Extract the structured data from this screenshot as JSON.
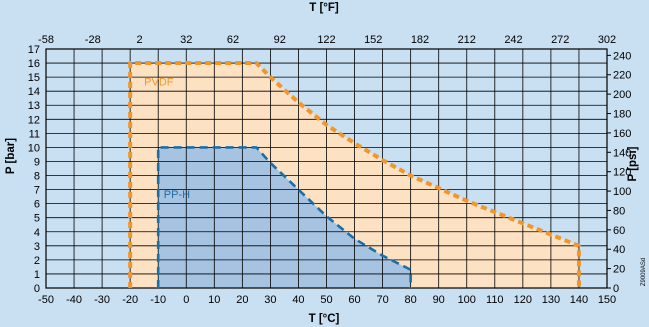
{
  "chart_data": {
    "type": "area",
    "x_bottom": {
      "label": "T [°C]",
      "min": -50,
      "max": 150,
      "step": 10,
      "ticks": [
        -50,
        -40,
        -30,
        -20,
        -10,
        0,
        10,
        20,
        30,
        40,
        50,
        60,
        70,
        80,
        90,
        100,
        110,
        120,
        130,
        140,
        150
      ]
    },
    "x_top": {
      "label": "T [°F]",
      "ticks": [
        -58,
        -28,
        2,
        32,
        62,
        92,
        122,
        152,
        182,
        212,
        242,
        272,
        302
      ]
    },
    "y_left": {
      "label": "P [bar]",
      "min": 0,
      "max": 17,
      "step": 1,
      "ticks": [
        0,
        1,
        2,
        3,
        4,
        5,
        6,
        7,
        8,
        9,
        10,
        11,
        12,
        13,
        14,
        15,
        16,
        17
      ]
    },
    "y_right": {
      "label": "P [psi]",
      "ticks": [
        0,
        20,
        40,
        60,
        80,
        100,
        120,
        140,
        160,
        180,
        200,
        220,
        240
      ]
    },
    "series": [
      {
        "name": "PVDF",
        "color": "#f0962d",
        "fill": "#fde1c3",
        "points": [
          [
            -20,
            0
          ],
          [
            -20,
            16
          ],
          [
            25,
            16
          ],
          [
            30,
            15
          ],
          [
            40,
            13.2
          ],
          [
            50,
            11.6
          ],
          [
            60,
            10.3
          ],
          [
            70,
            9.1
          ],
          [
            80,
            8
          ],
          [
            100,
            6.2
          ],
          [
            120,
            4.6
          ],
          [
            140,
            3
          ],
          [
            140,
            0
          ]
        ]
      },
      {
        "name": "PP-H",
        "color": "#1e6ea6",
        "fill": "#a6c3e2",
        "points": [
          [
            -10,
            0
          ],
          [
            -10,
            10
          ],
          [
            25,
            10
          ],
          [
            30,
            8.9
          ],
          [
            40,
            7
          ],
          [
            50,
            5.1
          ],
          [
            60,
            3.5
          ],
          [
            70,
            2.3
          ],
          [
            80,
            1.3
          ],
          [
            80,
            0
          ]
        ]
      }
    ],
    "grid": true,
    "reference_code": "Z9009ASd"
  }
}
